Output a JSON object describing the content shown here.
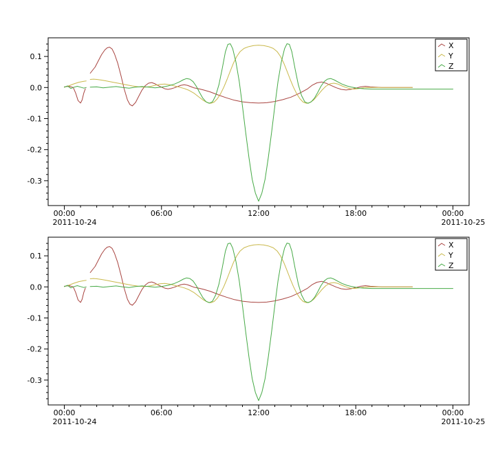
{
  "figure": {
    "background": "#ffffff",
    "frame_color": "#000000"
  },
  "chart_data": {
    "type": "line",
    "title": "",
    "xlabel": "",
    "ylabel": "",
    "panels": [
      "top",
      "bottom"
    ],
    "panels_note": "two stacked identical panels showing the same three series",
    "grid": false,
    "xlim": [
      -1,
      25
    ],
    "ylim": [
      -0.38,
      0.16
    ],
    "x_axis": {
      "major_ticks": [
        {
          "hour": 0,
          "label": "00:00"
        },
        {
          "hour": 6,
          "label": "06:00"
        },
        {
          "hour": 12,
          "label": "12:00"
        },
        {
          "hour": 18,
          "label": "18:00"
        },
        {
          "hour": 24,
          "label": "00:00"
        }
      ],
      "minor_step_hours": 1,
      "date_left": "2011-10-24",
      "date_right": "2011-10-25"
    },
    "y_axis": {
      "major_ticks": [
        {
          "value": 0.1,
          "label": "0.1"
        },
        {
          "value": 0.0,
          "label": "0.0"
        },
        {
          "value": -0.1,
          "label": "-0.1"
        },
        {
          "value": -0.2,
          "label": "-0.2"
        },
        {
          "value": -0.3,
          "label": "-0.3"
        }
      ],
      "minor_step": 0.02
    },
    "legend": {
      "position": "top-right",
      "entries": [
        "X",
        "Y",
        "Z"
      ]
    },
    "series": [
      {
        "name": "X",
        "color": "#a8433f",
        "points": [
          [
            0.0,
            0.002
          ],
          [
            0.3,
            0.004
          ],
          [
            0.55,
            0.0
          ],
          [
            0.7,
            -0.018
          ],
          [
            0.85,
            -0.042
          ],
          [
            1.0,
            -0.05
          ],
          [
            1.1,
            -0.04
          ],
          [
            1.2,
            -0.018
          ],
          [
            1.3,
            -0.004
          ],
          [
            1.45,
            null
          ],
          [
            1.6,
            0.046
          ],
          [
            1.75,
            0.056
          ],
          [
            1.9,
            0.066
          ],
          [
            2.1,
            0.086
          ],
          [
            2.3,
            0.106
          ],
          [
            2.5,
            0.121
          ],
          [
            2.65,
            0.128
          ],
          [
            2.8,
            0.13
          ],
          [
            2.95,
            0.124
          ],
          [
            3.1,
            0.108
          ],
          [
            3.3,
            0.078
          ],
          [
            3.5,
            0.038
          ],
          [
            3.7,
            -0.005
          ],
          [
            3.9,
            -0.04
          ],
          [
            4.05,
            -0.055
          ],
          [
            4.2,
            -0.059
          ],
          [
            4.4,
            -0.048
          ],
          [
            4.6,
            -0.028
          ],
          [
            4.8,
            -0.008
          ],
          [
            5.0,
            0.006
          ],
          [
            5.2,
            0.014
          ],
          [
            5.4,
            0.016
          ],
          [
            5.6,
            0.012
          ],
          [
            5.8,
            0.006
          ],
          [
            6.0,
            0.001
          ],
          [
            6.2,
            -0.004
          ],
          [
            6.4,
            -0.006
          ],
          [
            6.6,
            -0.004
          ],
          [
            6.8,
            -0.001
          ],
          [
            7.0,
            0.003
          ],
          [
            7.2,
            0.007
          ],
          [
            7.4,
            0.009
          ],
          [
            7.6,
            0.007
          ],
          [
            7.8,
            0.003
          ],
          [
            8.0,
            -0.001
          ],
          [
            8.3,
            -0.004
          ],
          [
            8.6,
            -0.008
          ],
          [
            9.0,
            -0.014
          ],
          [
            9.5,
            -0.024
          ],
          [
            10.0,
            -0.033
          ],
          [
            10.5,
            -0.041
          ],
          [
            11.0,
            -0.046
          ],
          [
            11.5,
            -0.049
          ],
          [
            12.0,
            -0.05
          ],
          [
            12.5,
            -0.049
          ],
          [
            13.0,
            -0.045
          ],
          [
            13.5,
            -0.039
          ],
          [
            14.0,
            -0.031
          ],
          [
            14.5,
            -0.019
          ],
          [
            15.0,
            -0.005
          ],
          [
            15.3,
            0.007
          ],
          [
            15.6,
            0.015
          ],
          [
            15.9,
            0.018
          ],
          [
            16.2,
            0.013
          ],
          [
            16.5,
            0.006
          ],
          [
            16.8,
            -0.001
          ],
          [
            17.1,
            -0.006
          ],
          [
            17.4,
            -0.008
          ],
          [
            17.7,
            -0.006
          ],
          [
            18.0,
            -0.002
          ],
          [
            18.3,
            0.002
          ],
          [
            18.6,
            0.004
          ],
          [
            18.9,
            0.002
          ],
          [
            19.2,
            0.001
          ],
          [
            19.6,
            0.0
          ],
          [
            20.0,
            0.0
          ],
          [
            20.5,
            0.0
          ],
          [
            21.0,
            0.0
          ],
          [
            21.5,
            0.0
          ]
        ]
      },
      {
        "name": "Y",
        "color": "#c9b84a",
        "points": [
          [
            0.0,
            0.001
          ],
          [
            0.3,
            0.006
          ],
          [
            0.6,
            0.012
          ],
          [
            0.9,
            0.017
          ],
          [
            1.2,
            0.02
          ],
          [
            1.35,
            0.021
          ],
          [
            1.45,
            null
          ],
          [
            1.6,
            0.026
          ],
          [
            1.8,
            0.027
          ],
          [
            2.0,
            0.026
          ],
          [
            2.3,
            0.024
          ],
          [
            2.6,
            0.021
          ],
          [
            3.0,
            0.017
          ],
          [
            3.4,
            0.013
          ],
          [
            3.8,
            0.009
          ],
          [
            4.2,
            0.005
          ],
          [
            4.6,
            0.002
          ],
          [
            5.0,
            0.001
          ],
          [
            5.3,
            0.003
          ],
          [
            5.6,
            0.007
          ],
          [
            5.9,
            0.01
          ],
          [
            6.2,
            0.011
          ],
          [
            6.5,
            0.009
          ],
          [
            6.8,
            0.005
          ],
          [
            7.1,
            0.001
          ],
          [
            7.4,
            -0.003
          ],
          [
            7.7,
            -0.009
          ],
          [
            8.0,
            -0.018
          ],
          [
            8.3,
            -0.03
          ],
          [
            8.6,
            -0.042
          ],
          [
            8.85,
            -0.049
          ],
          [
            9.05,
            -0.051
          ],
          [
            9.25,
            -0.047
          ],
          [
            9.45,
            -0.036
          ],
          [
            9.65,
            -0.02
          ],
          [
            9.85,
            0.001
          ],
          [
            10.05,
            0.026
          ],
          [
            10.25,
            0.053
          ],
          [
            10.45,
            0.079
          ],
          [
            10.65,
            0.1
          ],
          [
            10.85,
            0.115
          ],
          [
            11.1,
            0.126
          ],
          [
            11.4,
            0.132
          ],
          [
            11.7,
            0.135
          ],
          [
            12.0,
            0.136
          ],
          [
            12.3,
            0.135
          ],
          [
            12.6,
            0.132
          ],
          [
            12.9,
            0.126
          ],
          [
            13.15,
            0.115
          ],
          [
            13.35,
            0.1
          ],
          [
            13.55,
            0.079
          ],
          [
            13.75,
            0.053
          ],
          [
            13.95,
            0.026
          ],
          [
            14.15,
            0.001
          ],
          [
            14.35,
            -0.02
          ],
          [
            14.55,
            -0.036
          ],
          [
            14.75,
            -0.047
          ],
          [
            14.95,
            -0.051
          ],
          [
            15.15,
            -0.049
          ],
          [
            15.4,
            -0.04
          ],
          [
            15.65,
            -0.025
          ],
          [
            15.9,
            -0.009
          ],
          [
            16.15,
            0.004
          ],
          [
            16.4,
            0.012
          ],
          [
            16.65,
            0.014
          ],
          [
            16.9,
            0.011
          ],
          [
            17.15,
            0.005
          ],
          [
            17.4,
            0.0
          ],
          [
            17.65,
            -0.004
          ],
          [
            17.9,
            -0.005
          ],
          [
            18.2,
            -0.003
          ],
          [
            18.5,
            -0.001
          ],
          [
            18.8,
            0.0
          ],
          [
            19.2,
            0.0
          ],
          [
            19.6,
            0.0
          ],
          [
            20.0,
            0.0
          ],
          [
            20.5,
            0.0
          ],
          [
            21.0,
            0.0
          ],
          [
            21.5,
            0.0
          ]
        ]
      },
      {
        "name": "Z",
        "color": "#45a945",
        "points": [
          [
            0.0,
            0.001
          ],
          [
            0.2,
            0.005
          ],
          [
            0.4,
            -0.003
          ],
          [
            0.6,
            0.001
          ],
          [
            0.8,
            0.004
          ],
          [
            1.0,
            0.001
          ],
          [
            1.2,
            -0.002
          ],
          [
            1.35,
            0.0
          ],
          [
            1.45,
            null
          ],
          [
            1.6,
            0.001
          ],
          [
            2.0,
            0.002
          ],
          [
            2.4,
            -0.001
          ],
          [
            2.8,
            0.001
          ],
          [
            3.2,
            0.003
          ],
          [
            3.6,
            0.0
          ],
          [
            4.0,
            -0.002
          ],
          [
            4.4,
            0.001
          ],
          [
            4.8,
            0.003
          ],
          [
            5.2,
            0.001
          ],
          [
            5.6,
            -0.001
          ],
          [
            6.0,
            0.001
          ],
          [
            6.4,
            0.005
          ],
          [
            6.8,
            0.011
          ],
          [
            7.1,
            0.018
          ],
          [
            7.35,
            0.025
          ],
          [
            7.55,
            0.029
          ],
          [
            7.75,
            0.027
          ],
          [
            7.95,
            0.019
          ],
          [
            8.15,
            0.004
          ],
          [
            8.35,
            -0.016
          ],
          [
            8.55,
            -0.034
          ],
          [
            8.75,
            -0.046
          ],
          [
            8.95,
            -0.051
          ],
          [
            9.15,
            -0.046
          ],
          [
            9.35,
            -0.026
          ],
          [
            9.55,
            0.009
          ],
          [
            9.75,
            0.06
          ],
          [
            9.95,
            0.115
          ],
          [
            10.1,
            0.139
          ],
          [
            10.25,
            0.141
          ],
          [
            10.4,
            0.125
          ],
          [
            10.6,
            0.082
          ],
          [
            10.8,
            0.02
          ],
          [
            11.0,
            -0.06
          ],
          [
            11.2,
            -0.145
          ],
          [
            11.4,
            -0.225
          ],
          [
            11.6,
            -0.295
          ],
          [
            11.8,
            -0.34
          ],
          [
            12.0,
            -0.366
          ],
          [
            12.2,
            -0.34
          ],
          [
            12.4,
            -0.295
          ],
          [
            12.6,
            -0.225
          ],
          [
            12.8,
            -0.145
          ],
          [
            13.0,
            -0.06
          ],
          [
            13.2,
            0.02
          ],
          [
            13.4,
            0.082
          ],
          [
            13.6,
            0.125
          ],
          [
            13.75,
            0.141
          ],
          [
            13.9,
            0.139
          ],
          [
            14.05,
            0.115
          ],
          [
            14.25,
            0.06
          ],
          [
            14.45,
            0.009
          ],
          [
            14.65,
            -0.026
          ],
          [
            14.85,
            -0.046
          ],
          [
            15.05,
            -0.051
          ],
          [
            15.25,
            -0.046
          ],
          [
            15.45,
            -0.034
          ],
          [
            15.65,
            -0.016
          ],
          [
            15.85,
            0.004
          ],
          [
            16.05,
            0.019
          ],
          [
            16.25,
            0.027
          ],
          [
            16.45,
            0.029
          ],
          [
            16.65,
            0.025
          ],
          [
            16.9,
            0.018
          ],
          [
            17.15,
            0.011
          ],
          [
            17.45,
            0.005
          ],
          [
            17.75,
            0.001
          ],
          [
            18.1,
            -0.002
          ],
          [
            18.5,
            -0.004
          ],
          [
            19.0,
            -0.005
          ],
          [
            20.0,
            -0.005
          ],
          [
            21.0,
            -0.005
          ],
          [
            22.0,
            -0.005
          ],
          [
            23.0,
            -0.005
          ],
          [
            24.0,
            -0.005
          ]
        ]
      }
    ]
  }
}
